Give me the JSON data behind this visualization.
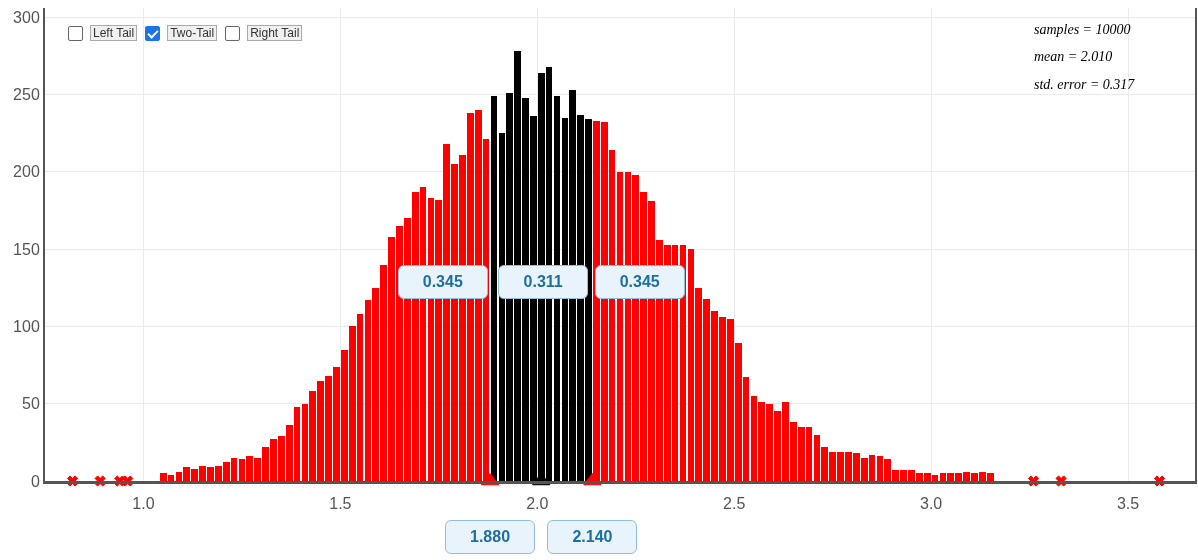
{
  "chart_data": {
    "type": "histogram",
    "bins": [
      1.04,
      1.06,
      1.08,
      1.1,
      1.12,
      1.14,
      1.16,
      1.18,
      1.2,
      1.22,
      1.24,
      1.26,
      1.28,
      1.3,
      1.32,
      1.34,
      1.36,
      1.38,
      1.4,
      1.42,
      1.44,
      1.46,
      1.48,
      1.5,
      1.52,
      1.54,
      1.56,
      1.58,
      1.6,
      1.62,
      1.64,
      1.66,
      1.68,
      1.7,
      1.72,
      1.74,
      1.76,
      1.78,
      1.8,
      1.82,
      1.84,
      1.86,
      1.88,
      1.9,
      1.92,
      1.94,
      1.96,
      1.98,
      2,
      2.02,
      2.04,
      2.06,
      2.08,
      2.1,
      2.12,
      2.14,
      2.16,
      2.18,
      2.2,
      2.22,
      2.24,
      2.26,
      2.28,
      2.3,
      2.32,
      2.34,
      2.36,
      2.38,
      2.4,
      2.42,
      2.44,
      2.46,
      2.48,
      2.5,
      2.52,
      2.54,
      2.56,
      2.58,
      2.6,
      2.62,
      2.64,
      2.66,
      2.68,
      2.7,
      2.72,
      2.74,
      2.76,
      2.78,
      2.8,
      2.82,
      2.84,
      2.86,
      2.88,
      2.9,
      2.92,
      2.94,
      2.96,
      2.98,
      3,
      3.02,
      3.04,
      3.06,
      3.08,
      3.1,
      3.12,
      3.14,
      3.16
    ],
    "series": [
      {
        "color": "#ff0000",
        "values": [
          5,
          4,
          6,
          9,
          8,
          10,
          9,
          10,
          12,
          15,
          14,
          16,
          15,
          22,
          27,
          29,
          36,
          48,
          50,
          58,
          65,
          68,
          74,
          85,
          100,
          108,
          117,
          125,
          140,
          158,
          165,
          170,
          187,
          190,
          183,
          182,
          218,
          205,
          211,
          238,
          240,
          221,
          null,
          null,
          null,
          null,
          null,
          null,
          null,
          null,
          null,
          null,
          null,
          null,
          null,
          233,
          232,
          214,
          200,
          200,
          198,
          187,
          181,
          156,
          153,
          153,
          153,
          150,
          125,
          118,
          110,
          106,
          105,
          89,
          67,
          55,
          51,
          50,
          45,
          51,
          38,
          35,
          35,
          30,
          22,
          19,
          19,
          19,
          18,
          15,
          17,
          16,
          14,
          7,
          7,
          7,
          5,
          5,
          4,
          5,
          5,
          5,
          6,
          5,
          6,
          5
        ]
      },
      {
        "color": "#000000",
        "values": [
          null,
          null,
          null,
          null,
          null,
          null,
          null,
          null,
          null,
          null,
          null,
          null,
          null,
          null,
          null,
          null,
          null,
          null,
          null,
          null,
          null,
          null,
          null,
          null,
          null,
          null,
          null,
          null,
          null,
          null,
          null,
          null,
          null,
          null,
          null,
          null,
          null,
          null,
          null,
          null,
          null,
          null,
          249,
          225,
          251,
          278,
          248,
          236,
          264,
          268,
          249,
          235,
          253,
          237,
          234,
          null,
          null,
          null,
          null,
          null,
          null,
          null,
          null,
          null,
          null,
          null,
          null,
          null,
          null,
          null,
          null,
          null,
          null,
          null,
          null,
          null,
          null,
          null,
          null,
          null,
          null,
          null,
          null,
          null,
          null,
          null,
          null,
          null,
          null,
          null,
          null,
          null,
          null,
          null,
          null,
          null,
          null,
          null,
          null,
          null,
          null,
          null,
          null,
          null,
          null,
          null
        ]
      },
      {
        "type": "scatter",
        "marker": "cross",
        "color": "#ff0000",
        "x": [
          0.82,
          0.89,
          0.94,
          0.96,
          3.26,
          3.33,
          3.58
        ],
        "values": [
          0,
          0,
          0,
          0,
          0,
          0,
          0
        ]
      },
      {
        "type": "scatter",
        "marker": "triangle",
        "color": "#ff0000",
        "x": [
          1.88,
          2.14
        ],
        "values": [
          0,
          0
        ]
      },
      {
        "type": "scatter",
        "marker": "triangle",
        "color": "#000000",
        "x": [
          2.01
        ],
        "values": [
          0
        ]
      }
    ],
    "xlim": [
      0.75,
      3.67
    ],
    "ylim": [
      0,
      306
    ],
    "xticks": [
      {
        "value": 1,
        "label": "1.0"
      },
      {
        "value": 1.5,
        "label": "1.5"
      },
      {
        "value": 2,
        "label": "2.0"
      },
      {
        "value": 2.5,
        "label": "2.5"
      },
      {
        "value": 3,
        "label": "3.0"
      },
      {
        "value": 3.5,
        "label": "3.5"
      }
    ],
    "yticks": [
      0,
      50,
      100,
      150,
      200,
      250,
      300
    ],
    "grid": true,
    "annotations": [
      "Left Tail",
      "Two-Tail",
      "Right Tail",
      "samples = 10000",
      "mean = 2.010",
      "std. error = 0.317",
      {
        "text": "0.345",
        "x": 1.76,
        "y": 129
      },
      {
        "text": "0.311",
        "x": 2.015,
        "y": 129
      },
      {
        "text": "0.345",
        "x": 2.26,
        "y": 129
      },
      {
        "text": "1.880",
        "x": 1.88,
        "y": 0
      },
      {
        "text": "2.140",
        "x": 2.14,
        "y": 0
      }
    ]
  }
}
